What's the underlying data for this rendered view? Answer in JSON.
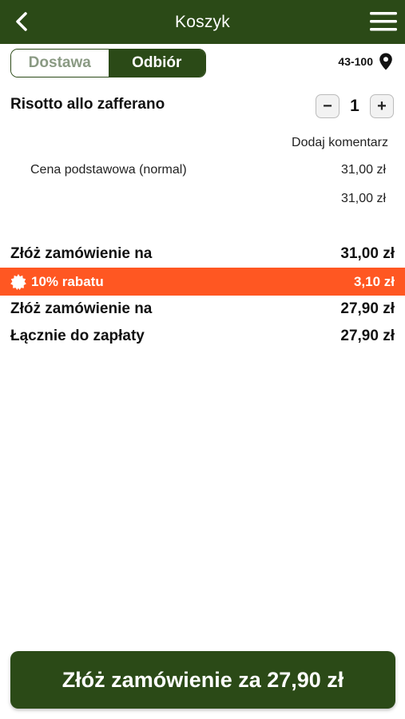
{
  "colors": {
    "primary": "#2b4a17",
    "discount": "#ff5722"
  },
  "header": {
    "title": "Koszyk",
    "back_icon": "chevron-left-icon",
    "menu_icon": "hamburger-menu-icon"
  },
  "delivery_toggle": {
    "options": [
      "Dostawa",
      "Odbiór"
    ],
    "selected": "Odbiór"
  },
  "location": {
    "postal_code": "43-100",
    "icon": "location-pin-icon"
  },
  "cart_item": {
    "name": "Risotto allo zafferano",
    "quantity": "1",
    "decrease_label": "−",
    "increase_label": "+",
    "comment_label": "Dodaj komentarz",
    "base_price_label": "Cena podstawowa (normal)",
    "base_price": "31,00 zł",
    "item_total": "31,00 zł"
  },
  "summary": {
    "order_label": "Złóż zamówienie na",
    "order_amount": "31,00 zł",
    "discount_label": "10% rabatu",
    "discount_amount": "3,10 zł",
    "discount_icon": "badge-icon",
    "after_discount_label": "Złóż zamówienie na",
    "after_discount_amount": "27,90 zł",
    "total_label": "Łącznie do zapłaty",
    "total_amount": "27,90 zł"
  },
  "cta": {
    "label": "Złóż zamówienie za 27,90 zł"
  }
}
